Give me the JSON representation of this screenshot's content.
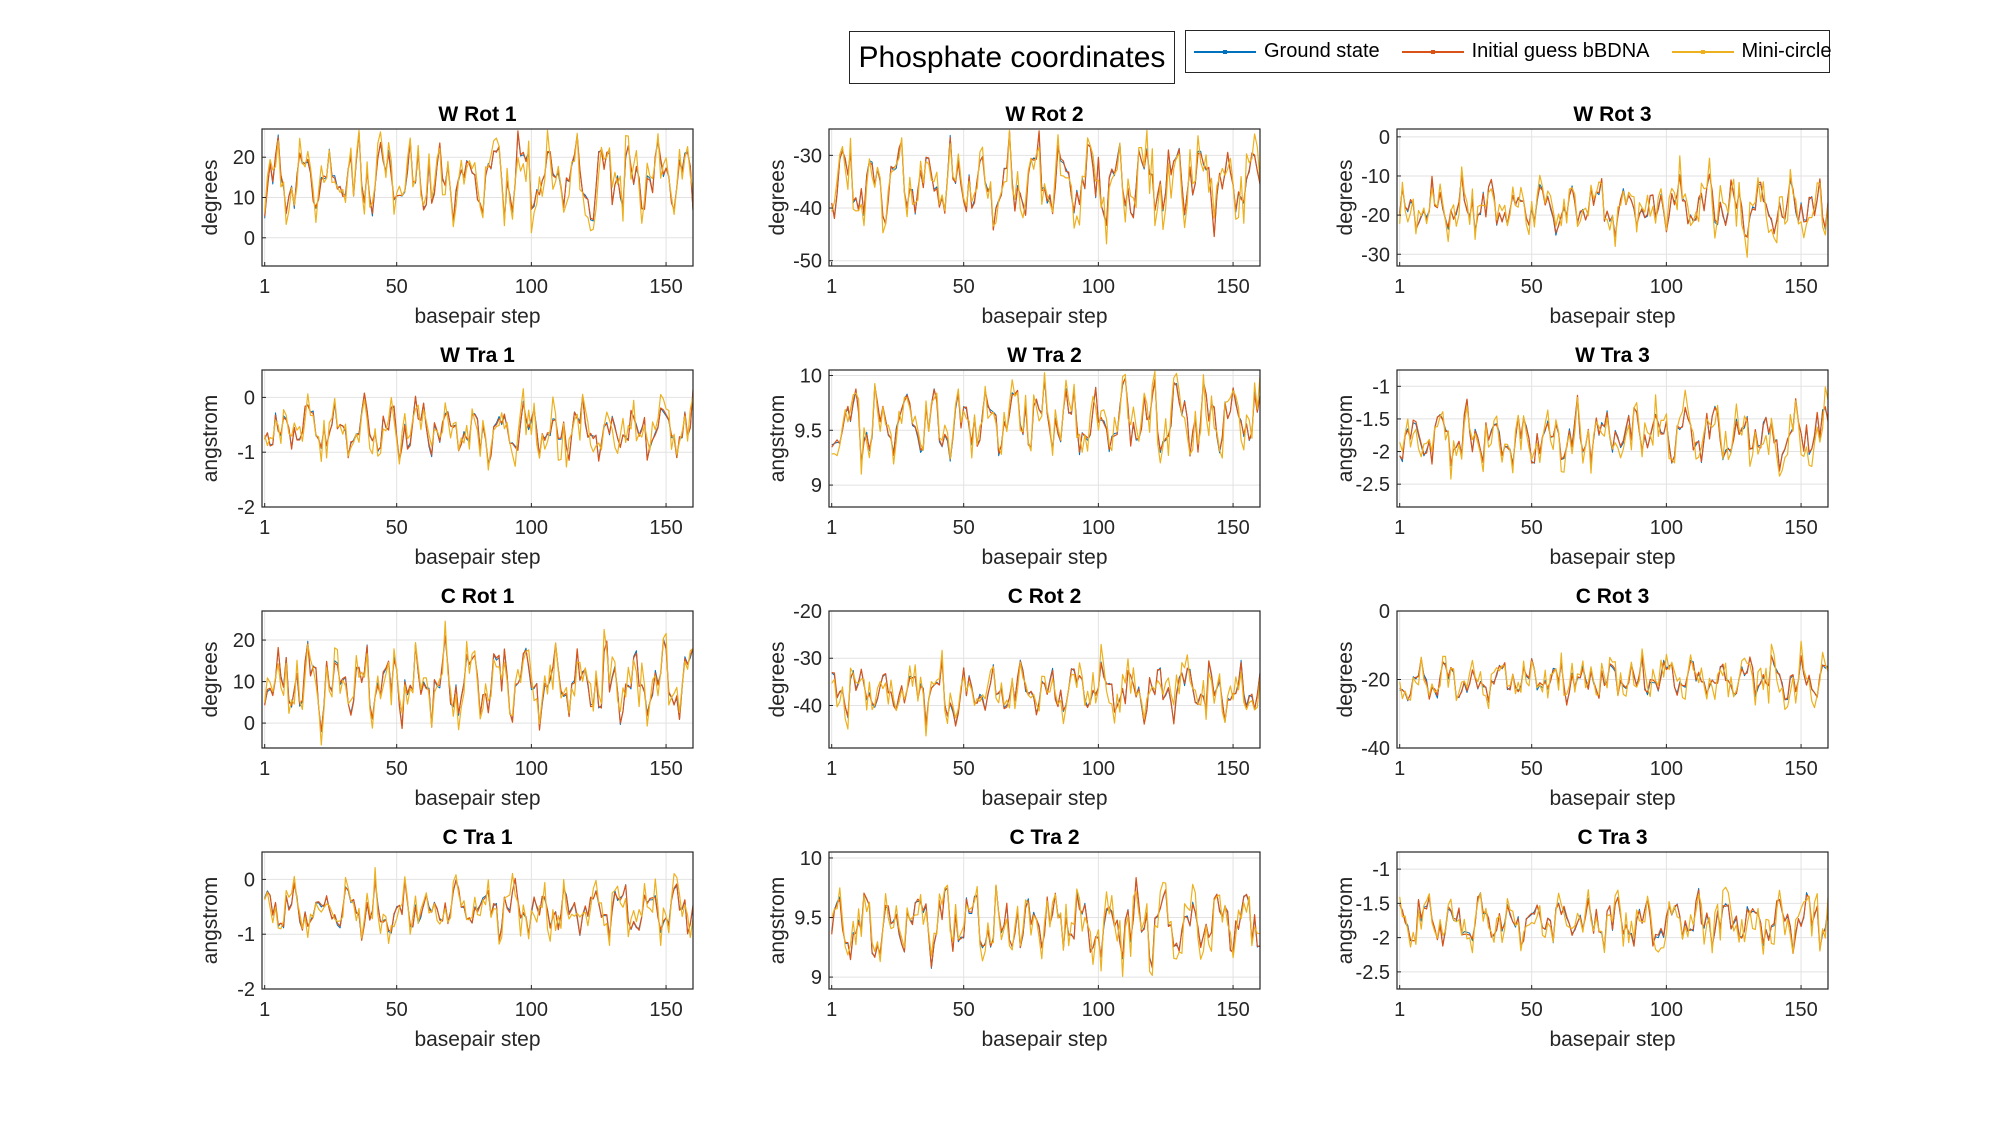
{
  "figure": {
    "title": "Phosphate coordinates"
  },
  "legend": {
    "position": "top-right",
    "entries": [
      {
        "label": "Ground state",
        "color": "#0072BD"
      },
      {
        "label": "Initial guess bBDNA",
        "color": "#D95319"
      },
      {
        "label": "Mini-circle",
        "color": "#EDB120"
      }
    ]
  },
  "chart_data": [
    {
      "type": "line",
      "title": "W Rot 1",
      "xlabel": "basepair step",
      "ylabel": "degrees",
      "xlim": [
        0,
        160
      ],
      "ylim": [
        -7,
        27
      ],
      "xticks": [
        1,
        50,
        100,
        150
      ],
      "yticks": [
        0,
        10,
        20
      ],
      "grid": true,
      "base": 15,
      "amp": 10,
      "spread": 0.22,
      "seed": 11,
      "series": [
        {
          "name": "Ground state"
        },
        {
          "name": "Initial guess bBDNA"
        },
        {
          "name": "Mini-circle"
        }
      ]
    },
    {
      "type": "line",
      "title": "W Rot 2",
      "xlabel": "basepair step",
      "ylabel": "degrees",
      "xlim": [
        0,
        160
      ],
      "ylim": [
        -51,
        -25
      ],
      "xticks": [
        1,
        50,
        100,
        150
      ],
      "yticks": [
        -50,
        -40,
        -30
      ],
      "grid": true,
      "base": -35,
      "amp": 8,
      "spread": 0.24,
      "seed": 23,
      "series": [
        {
          "name": "Ground state"
        },
        {
          "name": "Initial guess bBDNA"
        },
        {
          "name": "Mini-circle"
        }
      ]
    },
    {
      "type": "line",
      "title": "W Rot 3",
      "xlabel": "basepair step",
      "ylabel": "degrees",
      "xlim": [
        0,
        160
      ],
      "ylim": [
        -33,
        2
      ],
      "xticks": [
        1,
        50,
        100,
        150
      ],
      "yticks": [
        -30,
        -20,
        -10,
        0
      ],
      "grid": true,
      "base": -18,
      "amp": 7,
      "spread": 0.2,
      "seed": 37,
      "series": [
        {
          "name": "Ground state"
        },
        {
          "name": "Initial guess bBDNA"
        },
        {
          "name": "Mini-circle"
        }
      ]
    },
    {
      "type": "line",
      "title": "W Tra 1",
      "xlabel": "basepair step",
      "ylabel": "angstrom",
      "xlim": [
        0,
        160
      ],
      "ylim": [
        -2,
        0.5
      ],
      "xticks": [
        1,
        50,
        100,
        150
      ],
      "yticks": [
        -2,
        -1,
        0
      ],
      "grid": true,
      "base": -0.6,
      "amp": 0.55,
      "spread": 0.2,
      "seed": 41,
      "series": [
        {
          "name": "Ground state"
        },
        {
          "name": "Initial guess bBDNA"
        },
        {
          "name": "Mini-circle"
        }
      ]
    },
    {
      "type": "line",
      "title": "W Tra 2",
      "xlabel": "basepair step",
      "ylabel": "angstrom",
      "xlim": [
        0,
        160
      ],
      "ylim": [
        8.8,
        10.05
      ],
      "xticks": [
        1,
        50,
        100,
        150
      ],
      "yticks": [
        9,
        9.5,
        10
      ],
      "grid": true,
      "base": 9.6,
      "amp": 0.35,
      "spread": 0.2,
      "seed": 53,
      "series": [
        {
          "name": "Ground state"
        },
        {
          "name": "Initial guess bBDNA"
        },
        {
          "name": "Mini-circle"
        }
      ]
    },
    {
      "type": "line",
      "title": "W Tra 3",
      "xlabel": "basepair step",
      "ylabel": "angstrom",
      "xlim": [
        0,
        160
      ],
      "ylim": [
        -2.85,
        -0.75
      ],
      "xticks": [
        1,
        50,
        100,
        150
      ],
      "yticks": [
        -2.5,
        -2,
        -1.5,
        -1
      ],
      "grid": true,
      "base": -1.75,
      "amp": 0.45,
      "spread": 0.2,
      "seed": 67,
      "series": [
        {
          "name": "Ground state"
        },
        {
          "name": "Initial guess bBDNA"
        },
        {
          "name": "Mini-circle"
        }
      ]
    },
    {
      "type": "line",
      "title": "C Rot 1",
      "xlabel": "basepair step",
      "ylabel": "degrees",
      "xlim": [
        0,
        160
      ],
      "ylim": [
        -6,
        27
      ],
      "xticks": [
        1,
        50,
        100,
        150
      ],
      "yticks": [
        0,
        10,
        20
      ],
      "grid": true,
      "base": 10,
      "amp": 9,
      "spread": 0.22,
      "seed": 79,
      "series": [
        {
          "name": "Ground state"
        },
        {
          "name": "Initial guess bBDNA"
        },
        {
          "name": "Mini-circle"
        }
      ]
    },
    {
      "type": "line",
      "title": "C Rot 2",
      "xlabel": "basepair step",
      "ylabel": "degrees",
      "xlim": [
        0,
        160
      ],
      "ylim": [
        -49,
        -20
      ],
      "xticks": [
        1,
        50,
        100,
        150
      ],
      "yticks": [
        -40,
        -30,
        -20
      ],
      "grid": true,
      "base": -37,
      "amp": 6,
      "spread": 0.18,
      "seed": 83,
      "series": [
        {
          "name": "Ground state"
        },
        {
          "name": "Initial guess bBDNA"
        },
        {
          "name": "Mini-circle"
        }
      ]
    },
    {
      "type": "line",
      "title": "C Rot 3",
      "xlabel": "basepair step",
      "ylabel": "degrees",
      "xlim": [
        0,
        160
      ],
      "ylim": [
        -40,
        0
      ],
      "xticks": [
        1,
        50,
        100,
        150
      ],
      "yticks": [
        -40,
        -20,
        0
      ],
      "grid": true,
      "base": -20,
      "amp": 6,
      "spread": 0.16,
      "seed": 97,
      "series": [
        {
          "name": "Ground state"
        },
        {
          "name": "Initial guess bBDNA"
        },
        {
          "name": "Mini-circle"
        }
      ]
    },
    {
      "type": "line",
      "title": "C Tra 1",
      "xlabel": "basepair step",
      "ylabel": "angstrom",
      "xlim": [
        0,
        160
      ],
      "ylim": [
        -2,
        0.5
      ],
      "xticks": [
        1,
        50,
        100,
        150
      ],
      "yticks": [
        -2,
        -1,
        0
      ],
      "grid": true,
      "base": -0.55,
      "amp": 0.45,
      "spread": 0.18,
      "seed": 101,
      "series": [
        {
          "name": "Ground state"
        },
        {
          "name": "Initial guess bBDNA"
        },
        {
          "name": "Mini-circle"
        }
      ]
    },
    {
      "type": "line",
      "title": "C Tra 2",
      "xlabel": "basepair step",
      "ylabel": "angstrom",
      "xlim": [
        0,
        160
      ],
      "ylim": [
        8.9,
        10.05
      ],
      "xticks": [
        1,
        50,
        100,
        150
      ],
      "yticks": [
        9,
        9.5,
        10
      ],
      "grid": true,
      "base": 9.45,
      "amp": 0.3,
      "spread": 0.2,
      "seed": 113,
      "series": [
        {
          "name": "Ground state"
        },
        {
          "name": "Initial guess bBDNA"
        },
        {
          "name": "Mini-circle"
        }
      ]
    },
    {
      "type": "line",
      "title": "C Tra 3",
      "xlabel": "basepair step",
      "ylabel": "angstrom",
      "xlim": [
        0,
        160
      ],
      "ylim": [
        -2.75,
        -0.75
      ],
      "xticks": [
        1,
        50,
        100,
        150
      ],
      "yticks": [
        -2.5,
        -2,
        -1.5,
        -1
      ],
      "grid": true,
      "base": -1.75,
      "amp": 0.38,
      "spread": 0.18,
      "seed": 127,
      "series": [
        {
          "name": "Ground state"
        },
        {
          "name": "Initial guess bBDNA"
        },
        {
          "name": "Mini-circle"
        }
      ]
    }
  ]
}
